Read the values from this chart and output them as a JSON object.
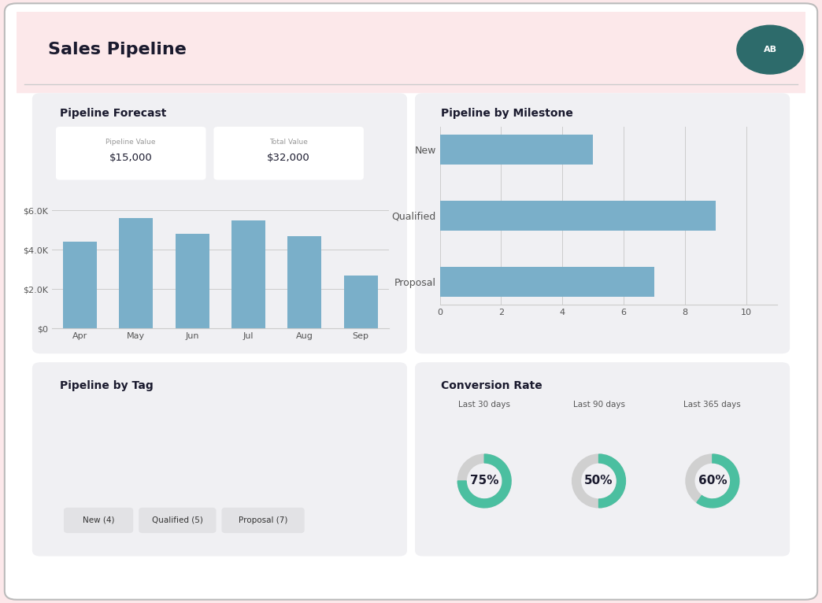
{
  "bg_color": "#fce8ea",
  "panel_bg": "#f0f0f3",
  "title": "Sales Pipeline",
  "avatar_color": "#2d6b6b",
  "avatar_text": "AB",
  "pipeline_forecast_title": "Pipeline Forecast",
  "pipeline_value_label": "Pipeline Value",
  "pipeline_value": "$15,000",
  "total_value_label": "Total Value",
  "total_value": "$32,000",
  "bar_months": [
    "Apr",
    "May",
    "Jun",
    "Jul",
    "Aug",
    "Sep"
  ],
  "bar_values": [
    4400,
    5600,
    4800,
    5500,
    4700,
    2700
  ],
  "bar_color": "#7aafc9",
  "bar_yticks": [
    0,
    2000,
    4000,
    6000
  ],
  "bar_ytick_labels": [
    "$0",
    "$2.0K",
    "$4.0K",
    "$6.0K"
  ],
  "milestone_title": "Pipeline by Milestone",
  "milestone_categories": [
    "New",
    "Qualified",
    "Proposal"
  ],
  "milestone_values": [
    5,
    9,
    7
  ],
  "milestone_bar_color": "#7aafc9",
  "tag_title": "Pipeline by Tag",
  "tags": [
    "New (4)",
    "Qualified (5)",
    "Proposal (7)"
  ],
  "conversion_title": "Conversion Rate",
  "conversion_periods": [
    "Last 30 days",
    "Last 90 days",
    "Last 365 days"
  ],
  "conversion_values": [
    75,
    50,
    60
  ],
  "donut_color": "#4bbfa0",
  "donut_bg_color": "#d0d0d0"
}
